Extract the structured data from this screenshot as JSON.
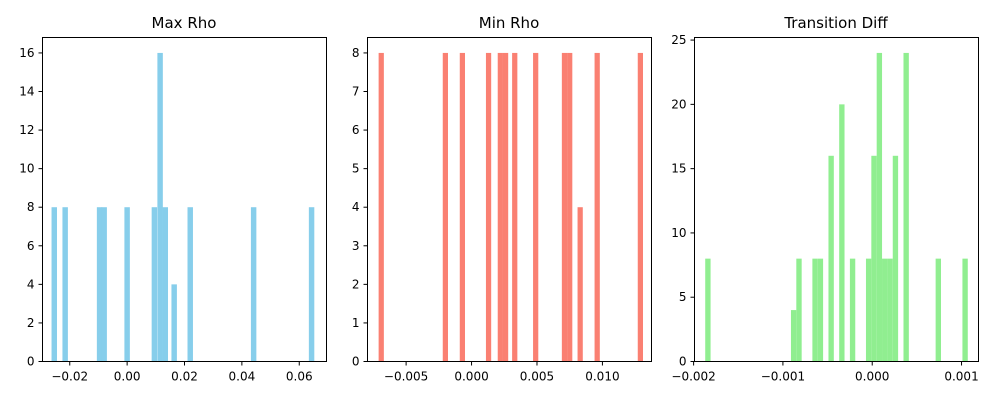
{
  "chart_data": [
    {
      "type": "histogram",
      "title": "Max Rho",
      "color": "#87ceeb",
      "xlim": [
        -0.0295,
        0.0695
      ],
      "ylim": [
        0,
        16.8
      ],
      "bin_width": 0.0019,
      "bars": [
        {
          "x": -0.0254,
          "count": 8
        },
        {
          "x": -0.0216,
          "count": 8
        },
        {
          "x": -0.0096,
          "count": 8
        },
        {
          "x": -0.008,
          "count": 8
        },
        {
          "x": 0.0,
          "count": 8
        },
        {
          "x": 0.0095,
          "count": 8
        },
        {
          "x": 0.0115,
          "count": 16
        },
        {
          "x": 0.0133,
          "count": 8
        },
        {
          "x": 0.0164,
          "count": 4
        },
        {
          "x": 0.022,
          "count": 8
        },
        {
          "x": 0.0441,
          "count": 8
        },
        {
          "x": 0.0643,
          "count": 8
        }
      ],
      "xticks": [
        -0.02,
        0.0,
        0.02,
        0.04,
        0.06
      ],
      "xtick_labels": [
        "−0.02",
        "0.00",
        "0.02",
        "0.04",
        "0.06"
      ],
      "yticks": [
        0,
        2,
        4,
        6,
        8,
        10,
        12,
        14,
        16
      ],
      "ytick_labels": [
        "0",
        "2",
        "4",
        "6",
        "8",
        "10",
        "12",
        "14",
        "16"
      ]
    },
    {
      "type": "histogram",
      "title": "Min Rho",
      "color": "#fa8072",
      "xlim": [
        -0.00795,
        0.01375
      ],
      "ylim": [
        0,
        8.4
      ],
      "bin_width": 0.0004,
      "bars": [
        {
          "x": -0.0069,
          "count": 8
        },
        {
          "x": -0.002,
          "count": 8
        },
        {
          "x": -0.0007,
          "count": 8
        },
        {
          "x": 0.0013,
          "count": 8
        },
        {
          "x": 0.0022,
          "count": 8
        },
        {
          "x": 0.0026,
          "count": 8
        },
        {
          "x": 0.0033,
          "count": 8
        },
        {
          "x": 0.0049,
          "count": 8
        },
        {
          "x": 0.0071,
          "count": 8
        },
        {
          "x": 0.0075,
          "count": 8
        },
        {
          "x": 0.0083,
          "count": 4
        },
        {
          "x": 0.0096,
          "count": 8
        },
        {
          "x": 0.0129,
          "count": 8
        }
      ],
      "xticks": [
        -0.005,
        0.0,
        0.005,
        0.01
      ],
      "xtick_labels": [
        "−0.005",
        "0.000",
        "0.005",
        "0.010"
      ],
      "yticks": [
        0,
        1,
        2,
        3,
        4,
        5,
        6,
        7,
        8
      ],
      "ytick_labels": [
        "0",
        "1",
        "2",
        "3",
        "4",
        "5",
        "6",
        "7",
        "8"
      ]
    },
    {
      "type": "histogram",
      "title": "Transition Diff",
      "color": "#90ee90",
      "xlim": [
        -0.00199,
        0.00119
      ],
      "ylim": [
        0,
        25.2
      ],
      "bin_width": 6e-05,
      "bars": [
        {
          "x": -0.00184,
          "count": 8
        },
        {
          "x": -0.00088,
          "count": 4
        },
        {
          "x": -0.00082,
          "count": 8
        },
        {
          "x": -0.00064,
          "count": 8
        },
        {
          "x": -0.00058,
          "count": 8
        },
        {
          "x": -0.00046,
          "count": 16
        },
        {
          "x": -0.00034,
          "count": 20
        },
        {
          "x": -0.00022,
          "count": 8
        },
        {
          "x": -4e-05,
          "count": 8
        },
        {
          "x": 2e-05,
          "count": 16
        },
        {
          "x": 8e-05,
          "count": 24
        },
        {
          "x": 0.00014,
          "count": 8
        },
        {
          "x": 0.0002,
          "count": 8
        },
        {
          "x": 0.00026,
          "count": 16
        },
        {
          "x": 0.00038,
          "count": 24
        },
        {
          "x": 0.00074,
          "count": 8
        },
        {
          "x": 0.00104,
          "count": 8
        }
      ],
      "xticks": [
        -0.002,
        -0.001,
        0.0,
        0.001
      ],
      "xtick_labels": [
        "−0.002",
        "−0.001",
        "0.000",
        "0.001"
      ],
      "yticks": [
        0,
        5,
        10,
        15,
        20,
        25
      ],
      "ytick_labels": [
        "0",
        "5",
        "10",
        "15",
        "20",
        "25"
      ]
    }
  ]
}
